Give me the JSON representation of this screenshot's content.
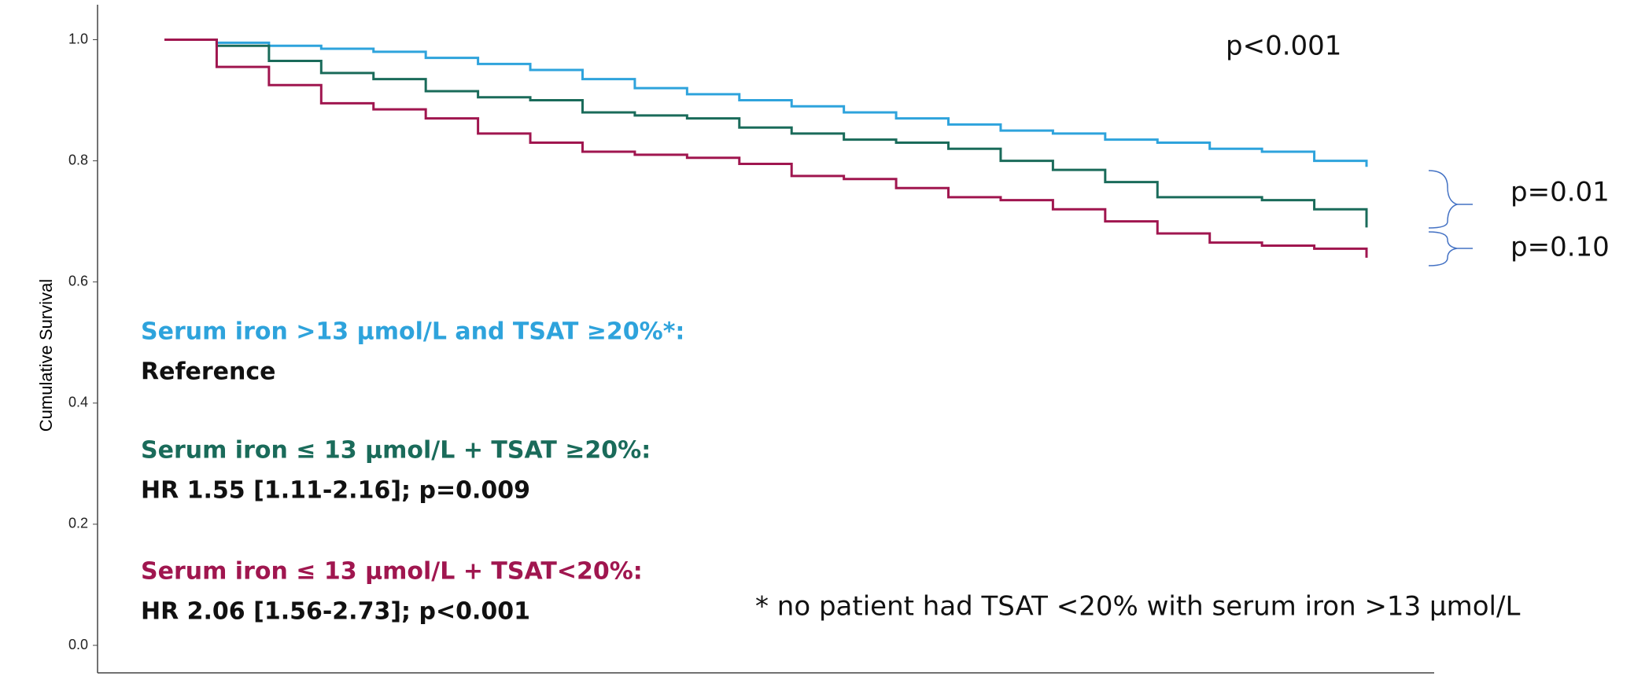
{
  "chart_data": {
    "type": "line",
    "step": true,
    "y_label": "Cumulative Survival",
    "categories": [
      null,
      null,
      null,
      null,
      null,
      null,
      null,
      null,
      null,
      null,
      null,
      null,
      null,
      null,
      null,
      null,
      null,
      null,
      null,
      null,
      null,
      null,
      null,
      null
    ],
    "series": [
      {
        "name": "Serum iron >13 µmol/L and TSAT ≥20%*:",
        "color": "#2ea3dc",
        "annotation": "Reference",
        "values": [
          1.0,
          0.995,
          0.99,
          0.985,
          0.98,
          0.97,
          0.96,
          0.95,
          0.935,
          0.92,
          0.91,
          0.9,
          0.89,
          0.88,
          0.87,
          0.86,
          0.85,
          0.845,
          0.835,
          0.83,
          0.82,
          0.815,
          0.8,
          0.79
        ]
      },
      {
        "name": "Serum iron ≤ 13 µmol/L + TSAT ≥20%:",
        "color": "#1a6b5a",
        "annotation": "HR 1.55 [1.11-2.16]; p=0.009",
        "values": [
          1.0,
          0.99,
          0.965,
          0.945,
          0.935,
          0.915,
          0.905,
          0.9,
          0.88,
          0.875,
          0.87,
          0.855,
          0.845,
          0.835,
          0.83,
          0.82,
          0.8,
          0.785,
          0.765,
          0.74,
          0.74,
          0.735,
          0.72,
          0.69
        ]
      },
      {
        "name": "Serum iron ≤ 13 µmol/L + TSAT<20%:",
        "color": "#a0164f",
        "annotation": "HR 2.06 [1.56-2.73]; p<0.001",
        "values": [
          1.0,
          0.955,
          0.925,
          0.895,
          0.885,
          0.87,
          0.845,
          0.83,
          0.815,
          0.81,
          0.805,
          0.795,
          0.775,
          0.77,
          0.755,
          0.74,
          0.735,
          0.72,
          0.7,
          0.68,
          0.665,
          0.66,
          0.655,
          0.64
        ]
      }
    ],
    "ylim": [
      0,
      1
    ],
    "yticks": [
      {
        "value": 0,
        "label": "0.0"
      },
      0.2,
      0.4,
      0.6,
      0.8,
      {
        "value": 1,
        "label": "1.0"
      }
    ],
    "annotations": [
      "p<0.001",
      "p=0.01",
      "p=0.10",
      "* no patient had TSAT <20% with serum iron >13 µmol/L"
    ]
  }
}
